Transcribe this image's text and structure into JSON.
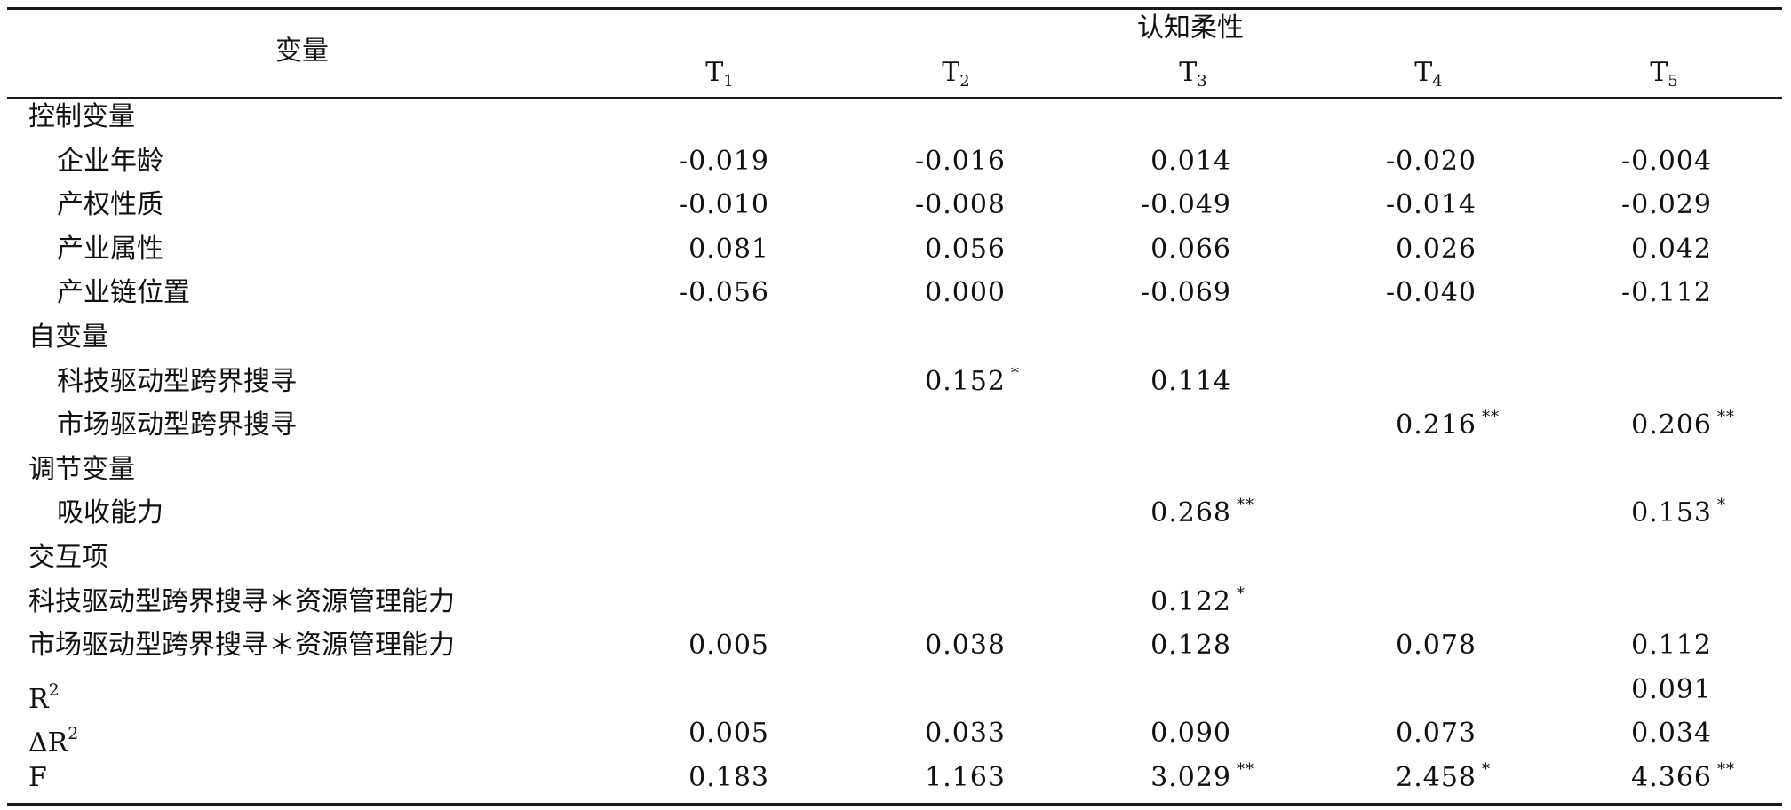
{
  "table": {
    "row_header_title": "变量",
    "group_header": "认知柔性",
    "columns": [
      {
        "base": "T",
        "sub": "1"
      },
      {
        "base": "T",
        "sub": "2"
      },
      {
        "base": "T",
        "sub": "3"
      },
      {
        "base": "T",
        "sub": "4"
      },
      {
        "base": "T",
        "sub": "5"
      }
    ],
    "rows": [
      {
        "label": "控制变量",
        "indent": false,
        "values": [
          null,
          null,
          null,
          null,
          null
        ]
      },
      {
        "label": "企业年龄",
        "indent": true,
        "values": [
          {
            "v": "-0.019"
          },
          {
            "v": "-0.016"
          },
          {
            "v": "0.014"
          },
          {
            "v": "-0.020"
          },
          {
            "v": "-0.004"
          }
        ]
      },
      {
        "label": "产权性质",
        "indent": true,
        "values": [
          {
            "v": "-0.010"
          },
          {
            "v": "-0.008"
          },
          {
            "v": "-0.049"
          },
          {
            "v": "-0.014"
          },
          {
            "v": "-0.029"
          }
        ]
      },
      {
        "label": "产业属性",
        "indent": true,
        "values": [
          {
            "v": "0.081"
          },
          {
            "v": "0.056"
          },
          {
            "v": "0.066"
          },
          {
            "v": "0.026"
          },
          {
            "v": "0.042"
          }
        ]
      },
      {
        "label": "产业链位置",
        "indent": true,
        "values": [
          {
            "v": "-0.056"
          },
          {
            "v": "0.000"
          },
          {
            "v": "-0.069"
          },
          {
            "v": "-0.040"
          },
          {
            "v": "-0.112"
          }
        ]
      },
      {
        "label": "自变量",
        "indent": false,
        "values": [
          null,
          null,
          null,
          null,
          null
        ]
      },
      {
        "label": "科技驱动型跨界搜寻",
        "indent": true,
        "values": [
          null,
          {
            "v": "0.152",
            "sig": "*"
          },
          {
            "v": "0.114"
          },
          null,
          null
        ]
      },
      {
        "label": "市场驱动型跨界搜寻",
        "indent": true,
        "values": [
          null,
          null,
          null,
          {
            "v": "0.216",
            "sig": "**"
          },
          {
            "v": "0.206",
            "sig": "**"
          }
        ]
      },
      {
        "label": "调节变量",
        "indent": false,
        "values": [
          null,
          null,
          null,
          null,
          null
        ]
      },
      {
        "label": "吸收能力",
        "indent": true,
        "values": [
          null,
          null,
          {
            "v": "0.268",
            "sig": "**"
          },
          null,
          {
            "v": "0.153",
            "sig": "*"
          }
        ]
      },
      {
        "label": "交互项",
        "indent": false,
        "values": [
          null,
          null,
          null,
          null,
          null
        ]
      },
      {
        "label": "科技驱动型跨界搜寻＊资源管理能力",
        "indent": false,
        "values": [
          null,
          null,
          {
            "v": "0.122",
            "sig": "*"
          },
          null,
          null
        ]
      },
      {
        "label": "市场驱动型跨界搜寻＊资源管理能力",
        "indent": false,
        "values": [
          {
            "v": "0.005"
          },
          {
            "v": "0.038"
          },
          {
            "v": "0.128"
          },
          {
            "v": "0.078"
          },
          {
            "v": "0.112"
          }
        ]
      },
      {
        "label": "R",
        "label_sup": "2",
        "indent": false,
        "values": [
          null,
          null,
          null,
          null,
          {
            "v": "0.091"
          }
        ]
      },
      {
        "label": "ΔR",
        "label_sup": "2",
        "indent": false,
        "values": [
          {
            "v": "0.005"
          },
          {
            "v": "0.033"
          },
          {
            "v": "0.090"
          },
          {
            "v": "0.073"
          },
          {
            "v": "0.034"
          }
        ]
      },
      {
        "label": "F",
        "indent": false,
        "values": [
          {
            "v": "0.183"
          },
          {
            "v": "1.163"
          },
          {
            "v": "3.029",
            "sig": "**"
          },
          {
            "v": "2.458",
            "sig": "*"
          },
          {
            "v": "4.366",
            "sig": "**"
          }
        ]
      }
    ]
  }
}
